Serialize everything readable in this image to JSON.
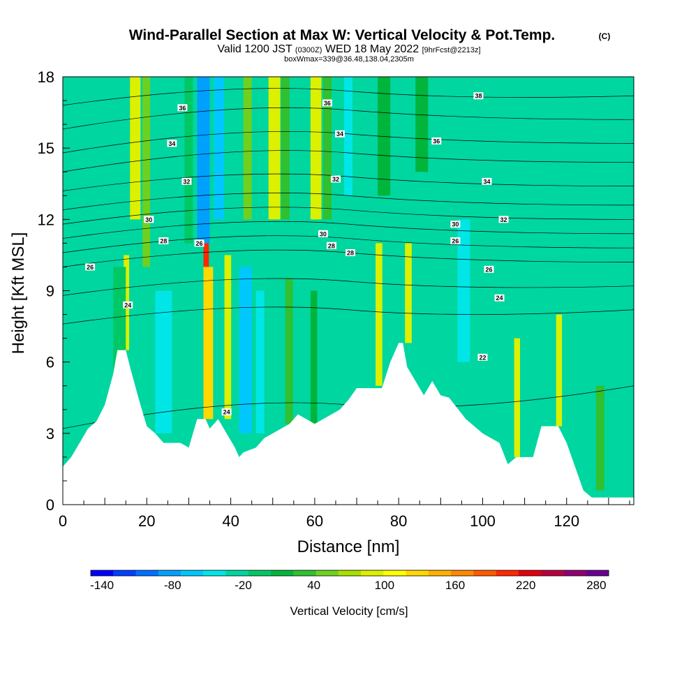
{
  "header": {
    "title": "Wind-Parallel Section at Max W: Vertical Velocity & Pot.Temp.",
    "title_mark": "(C)",
    "subtitle_a": "Valid 1200 JST",
    "subtitle_b": "(0300Z)",
    "subtitle_c": "WED 18 May 2022",
    "subtitle_d": "[9hrFcst@2213z]",
    "subtitle_e": "boxWmax=339@36.48,138.04,2305m"
  },
  "chart_data": {
    "type": "heatmap",
    "xlabel": "Distance [nm]",
    "ylabel": "Height [Kft MSL]",
    "xlim": [
      0,
      136
    ],
    "ylim": [
      0,
      18
    ],
    "x_ticks": [
      "0",
      "20",
      "40",
      "60",
      "80",
      "100",
      "120"
    ],
    "x_tick_values": [
      0,
      20,
      40,
      60,
      80,
      100,
      120
    ],
    "y_ticks": [
      "0",
      "3",
      "6",
      "9",
      "12",
      "15",
      "18"
    ],
    "y_tick_values": [
      0,
      3,
      6,
      9,
      12,
      15,
      18
    ],
    "colorbar": {
      "label": "Vertical Velocity [cm/s]",
      "min": -140,
      "max": 300,
      "step": 20,
      "tick_labels": [
        "-140",
        "-80",
        "-20",
        "40",
        "100",
        "160",
        "220",
        "280"
      ],
      "tick_values": [
        -140,
        -80,
        -20,
        40,
        100,
        160,
        220,
        280
      ],
      "colors": [
        "#0000ff",
        "#0040ff",
        "#0070ff",
        "#00a0ff",
        "#00c8ff",
        "#00e6e6",
        "#00d6a0",
        "#00c864",
        "#00b43c",
        "#30c030",
        "#70d020",
        "#a8e000",
        "#dcf000",
        "#ffff00",
        "#ffd800",
        "#ffb000",
        "#ff8800",
        "#ff5a00",
        "#ff2800",
        "#e00010",
        "#b80040",
        "#900070",
        "#6a0090"
      ]
    },
    "terrain_kft": [
      [
        0,
        1.6
      ],
      [
        2,
        2.0
      ],
      [
        4,
        2.6
      ],
      [
        6,
        3.2
      ],
      [
        8,
        3.5
      ],
      [
        10,
        4.2
      ],
      [
        12,
        5.5
      ],
      [
        13,
        6.5
      ],
      [
        15,
        6.5
      ],
      [
        16,
        5.8
      ],
      [
        18,
        4.5
      ],
      [
        20,
        3.3
      ],
      [
        22,
        3.0
      ],
      [
        24,
        2.6
      ],
      [
        28,
        2.6
      ],
      [
        30,
        2.4
      ],
      [
        32,
        3.6
      ],
      [
        34,
        3.6
      ],
      [
        35,
        3.2
      ],
      [
        37,
        3.6
      ],
      [
        39,
        3.0
      ],
      [
        41,
        2.4
      ],
      [
        42,
        2.0
      ],
      [
        43,
        2.2
      ],
      [
        46,
        2.4
      ],
      [
        48,
        2.8
      ],
      [
        50,
        3.0
      ],
      [
        54,
        3.4
      ],
      [
        56,
        3.8
      ],
      [
        60,
        3.4
      ],
      [
        64,
        3.8
      ],
      [
        66,
        4.0
      ],
      [
        68,
        4.4
      ],
      [
        70,
        4.9
      ],
      [
        76,
        4.9
      ],
      [
        78,
        6.0
      ],
      [
        80,
        6.8
      ],
      [
        81,
        6.8
      ],
      [
        82,
        5.8
      ],
      [
        84,
        5.2
      ],
      [
        86,
        4.6
      ],
      [
        88,
        5.2
      ],
      [
        90,
        4.6
      ],
      [
        92,
        4.5
      ],
      [
        96,
        3.6
      ],
      [
        100,
        3.0
      ],
      [
        104,
        2.6
      ],
      [
        106,
        1.7
      ],
      [
        108,
        2.0
      ],
      [
        112,
        2.0
      ],
      [
        114,
        3.3
      ],
      [
        118,
        3.3
      ],
      [
        120,
        2.6
      ],
      [
        122,
        1.6
      ],
      [
        124,
        0.6
      ],
      [
        126,
        0.3
      ],
      [
        130,
        0.3
      ],
      [
        136,
        0.3
      ]
    ],
    "velocity_features": [
      {
        "x": 0,
        "w": 136,
        "y0": 0,
        "y1": 18,
        "value": -10
      },
      {
        "x": 16,
        "w": 2.5,
        "y0": 12,
        "y1": 18,
        "value": 100
      },
      {
        "x": 19,
        "w": 1.8,
        "y0": 10,
        "y1": 18,
        "value": 70
      },
      {
        "x": 32,
        "w": 3,
        "y0": 11,
        "y1": 18,
        "value": -75
      },
      {
        "x": 36,
        "w": 2.4,
        "y0": 12,
        "y1": 18,
        "value": -45
      },
      {
        "x": 29,
        "w": 2,
        "y0": 11,
        "y1": 18,
        "value": 10
      },
      {
        "x": 43,
        "w": 2,
        "y0": 12,
        "y1": 18,
        "value": 60
      },
      {
        "x": 49,
        "w": 2.8,
        "y0": 12,
        "y1": 18,
        "value": 100
      },
      {
        "x": 52,
        "w": 2,
        "y0": 12,
        "y1": 18,
        "value": 40
      },
      {
        "x": 59,
        "w": 2.6,
        "y0": 12,
        "y1": 18,
        "value": 110
      },
      {
        "x": 62,
        "w": 2,
        "y0": 12,
        "y1": 18,
        "value": 50
      },
      {
        "x": 67,
        "w": 2,
        "y0": 13,
        "y1": 18,
        "value": -40
      },
      {
        "x": 75,
        "w": 3,
        "y0": 13,
        "y1": 18,
        "value": 20
      },
      {
        "x": 84,
        "w": 3,
        "y0": 14,
        "y1": 18,
        "value": 30
      },
      {
        "x": 14.5,
        "w": 1.3,
        "y0": 6.5,
        "y1": 10.5,
        "value": 100
      },
      {
        "x": 12,
        "w": 3,
        "y0": 5.5,
        "y1": 10,
        "value": 10
      },
      {
        "x": 22,
        "w": 4,
        "y0": 3,
        "y1": 9,
        "value": -25
      },
      {
        "x": 33.5,
        "w": 1.3,
        "y0": 3.6,
        "y1": 11,
        "value": 230
      },
      {
        "x": 33.5,
        "w": 2.3,
        "y0": 3.6,
        "y1": 10,
        "value": 140
      },
      {
        "x": 38.5,
        "w": 1.6,
        "y0": 3.6,
        "y1": 10.5,
        "value": 110
      },
      {
        "x": 42,
        "w": 3,
        "y0": 3,
        "y1": 10,
        "value": -60
      },
      {
        "x": 46,
        "w": 2,
        "y0": 3,
        "y1": 9,
        "value": -40
      },
      {
        "x": 53,
        "w": 1.8,
        "y0": 3.4,
        "y1": 9.5,
        "value": 50
      },
      {
        "x": 59,
        "w": 1.6,
        "y0": 3.4,
        "y1": 9,
        "value": 30
      },
      {
        "x": 74.5,
        "w": 1.6,
        "y0": 5,
        "y1": 11,
        "value": 100
      },
      {
        "x": 81.5,
        "w": 1.6,
        "y0": 6.8,
        "y1": 11,
        "value": 110
      },
      {
        "x": 94,
        "w": 3,
        "y0": 6,
        "y1": 12,
        "value": -30
      },
      {
        "x": 107.5,
        "w": 1.4,
        "y0": 2,
        "y1": 7,
        "value": 100
      },
      {
        "x": 117.5,
        "w": 1.4,
        "y0": 3.3,
        "y1": 8,
        "value": 100
      },
      {
        "x": 127,
        "w": 2,
        "y0": 0.6,
        "y1": 5,
        "value": 50
      }
    ],
    "theta_contours": [
      {
        "y_left": 3.2,
        "y_mid": 4.2,
        "y_right": 5.0
      },
      {
        "y_left": 7.6,
        "y_mid": 8.2,
        "y_right": 8.2
      },
      {
        "y_left": 8.8,
        "y_mid": 9.4,
        "y_right": 9.2
      },
      {
        "y_left": 10.0,
        "y_mid": 10.6,
        "y_right": 10.2
      },
      {
        "y_left": 10.6,
        "y_mid": 11.2,
        "y_right": 10.8
      },
      {
        "y_left": 11.2,
        "y_mid": 11.8,
        "y_right": 11.4
      },
      {
        "y_left": 11.8,
        "y_mid": 12.4,
        "y_right": 12.0
      },
      {
        "y_left": 12.4,
        "y_mid": 13.0,
        "y_right": 12.6
      },
      {
        "y_left": 13.2,
        "y_mid": 13.8,
        "y_right": 13.4
      },
      {
        "y_left": 14.0,
        "y_mid": 14.8,
        "y_right": 14.4
      },
      {
        "y_left": 14.8,
        "y_mid": 15.6,
        "y_right": 15.2
      },
      {
        "y_left": 15.8,
        "y_mid": 16.6,
        "y_right": 16.2
      },
      {
        "y_left": 16.8,
        "y_mid": 17.4,
        "y_right": 17.2
      }
    ],
    "contour_labels": [
      {
        "text": "36",
        "x": 28.5,
        "y": 16.7
      },
      {
        "text": "36",
        "x": 63,
        "y": 16.9
      },
      {
        "text": "38",
        "x": 99,
        "y": 17.2
      },
      {
        "text": "34",
        "x": 26,
        "y": 15.2
      },
      {
        "text": "34",
        "x": 66,
        "y": 15.6
      },
      {
        "text": "36",
        "x": 89,
        "y": 15.3
      },
      {
        "text": "32",
        "x": 29.5,
        "y": 13.6
      },
      {
        "text": "32",
        "x": 65,
        "y": 13.7
      },
      {
        "text": "34",
        "x": 101,
        "y": 13.6
      },
      {
        "text": "30",
        "x": 20.5,
        "y": 12.0
      },
      {
        "text": "32",
        "x": 105,
        "y": 12.0
      },
      {
        "text": "30",
        "x": 93.5,
        "y": 11.8
      },
      {
        "text": "30",
        "x": 62,
        "y": 11.4
      },
      {
        "text": "28",
        "x": 24,
        "y": 11.1
      },
      {
        "text": "26",
        "x": 32.5,
        "y": 11.0
      },
      {
        "text": "28",
        "x": 64,
        "y": 10.9
      },
      {
        "text": "28",
        "x": 68.5,
        "y": 10.6
      },
      {
        "text": "26",
        "x": 93.5,
        "y": 11.1
      },
      {
        "text": "26",
        "x": 6.5,
        "y": 10.0
      },
      {
        "text": "26",
        "x": 101.5,
        "y": 9.9
      },
      {
        "text": "24",
        "x": 15.5,
        "y": 8.4
      },
      {
        "text": "24",
        "x": 104,
        "y": 8.7
      },
      {
        "text": "22",
        "x": 100,
        "y": 6.2
      },
      {
        "text": "24",
        "x": 39,
        "y": 3.9
      }
    ]
  }
}
